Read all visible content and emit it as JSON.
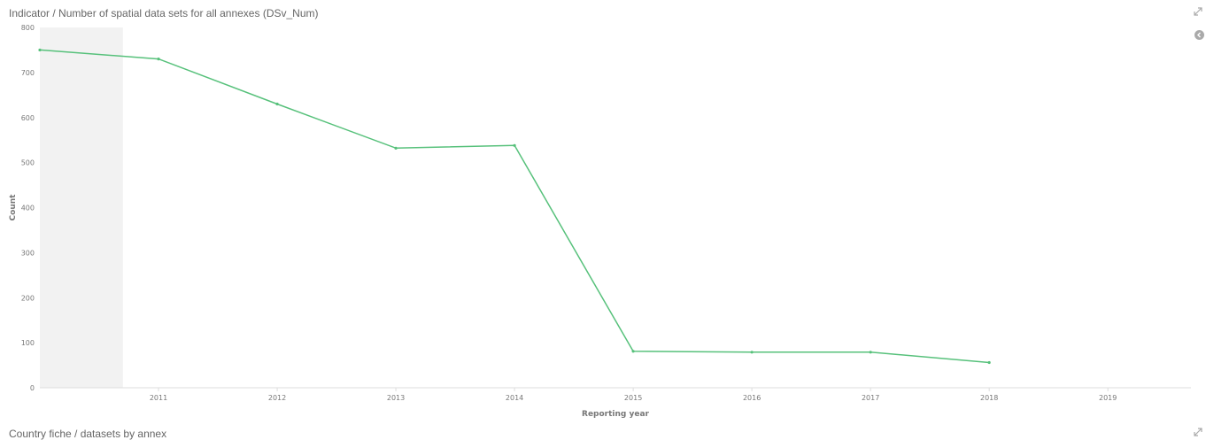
{
  "panel": {
    "title": "Indicator / Number of spatial data sets for all annexes (DSv_Num)",
    "next_title": "Country fiche / datasets by annex"
  },
  "icons": {
    "expand": "expand-icon",
    "legend_toggle": "chevron-left-circle-icon"
  },
  "colors": {
    "line": "#57c17b",
    "highlight_band": "#f2f2f2",
    "axis": "#dddddd"
  },
  "chart_data": {
    "type": "line",
    "title": "Indicator / Number of spatial data sets for all annexes (DSv_Num)",
    "xlabel": "Reporting year",
    "ylabel": "Count",
    "ylim": [
      0,
      800
    ],
    "xlim": [
      2010,
      2019.7
    ],
    "yticks": [
      0,
      100,
      200,
      300,
      400,
      500,
      600,
      700,
      800
    ],
    "xticks": [
      2011,
      2012,
      2013,
      2014,
      2015,
      2016,
      2017,
      2018,
      2019
    ],
    "highlight_band": [
      2010,
      2010.7
    ],
    "grid": false,
    "series": [
      {
        "x": [
          2010,
          2011,
          2012,
          2013,
          2014,
          2015,
          2016,
          2017,
          2018
        ],
        "values": [
          750,
          730,
          630,
          532,
          538,
          81,
          79,
          79,
          56
        ]
      }
    ]
  }
}
